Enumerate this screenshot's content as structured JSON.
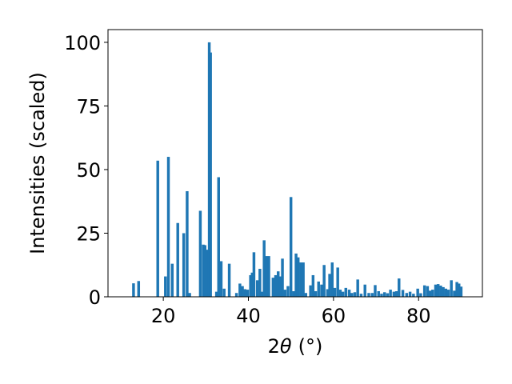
{
  "chart_data": {
    "type": "bar",
    "title": "",
    "xlabel": "2θ (°)",
    "xlabel_parts": {
      "main": "2",
      "symbol": "θ",
      "unit": "(°)"
    },
    "ylabel": "Intensities (scaled)",
    "xlim": [
      7,
      95
    ],
    "ylim": [
      0,
      105
    ],
    "xticks": [
      20,
      40,
      60,
      80
    ],
    "yticks": [
      0,
      25,
      50,
      75,
      100
    ],
    "bar_width": 0.65,
    "color": "#1f77b4",
    "grid": false,
    "legend": "none",
    "x": [
      13.0,
      14.2,
      18.7,
      20.5,
      21.2,
      22.1,
      23.4,
      24.8,
      25.6,
      26.2,
      28.7,
      29.4,
      29.8,
      30.3,
      30.8,
      31.1,
      32.5,
      33.0,
      33.6,
      34.3,
      35.5,
      37.2,
      38.0,
      38.6,
      39.2,
      39.8,
      40.5,
      40.9,
      41.3,
      42.1,
      42.7,
      43.2,
      43.7,
      44.2,
      44.8,
      45.8,
      46.4,
      47.0,
      47.5,
      48.0,
      48.6,
      49.3,
      50.0,
      50.6,
      51.2,
      51.7,
      52.3,
      52.9,
      53.5,
      54.6,
      55.2,
      55.8,
      56.5,
      57.2,
      57.8,
      58.6,
      59.1,
      59.7,
      60.3,
      61.0,
      61.6,
      62.2,
      62.9,
      63.7,
      64.3,
      65.0,
      65.7,
      66.5,
      67.4,
      68.3,
      69.1,
      69.8,
      70.6,
      71.3,
      72.0,
      72.7,
      73.4,
      74.2,
      74.8,
      75.4,
      76.3,
      77.2,
      78.0,
      78.8,
      79.8,
      80.5,
      81.4,
      82.1,
      82.7,
      83.3,
      84.0,
      84.6,
      85.2,
      85.8,
      86.4,
      87.0,
      87.7,
      88.4,
      89.0,
      89.5,
      90.0
    ],
    "values": [
      5.3,
      6.2,
      53.5,
      8.0,
      55.0,
      13.0,
      29.0,
      25.0,
      41.5,
      1.5,
      33.8,
      20.5,
      20.3,
      18.5,
      100.0,
      96.0,
      2.0,
      47.0,
      14.0,
      3.2,
      13.0,
      1.5,
      5.2,
      4.2,
      3.0,
      2.8,
      8.5,
      9.5,
      17.5,
      6.5,
      11.0,
      2.0,
      22.2,
      16.0,
      16.0,
      7.5,
      8.5,
      10.0,
      8.0,
      15.0,
      2.8,
      4.2,
      39.2,
      2.2,
      17.0,
      15.5,
      13.5,
      13.5,
      1.5,
      4.5,
      8.5,
      2.2,
      6.0,
      4.8,
      12.5,
      3.0,
      9.0,
      13.5,
      3.5,
      11.5,
      2.8,
      2.0,
      3.5,
      2.8,
      1.5,
      1.8,
      6.8,
      1.2,
      4.8,
      1.5,
      1.5,
      4.6,
      2.2,
      1.2,
      1.8,
      1.4,
      2.8,
      2.0,
      2.2,
      7.2,
      2.7,
      1.5,
      2.0,
      1.2,
      3.2,
      1.4,
      4.5,
      4.2,
      2.4,
      2.8,
      4.8,
      5.0,
      4.4,
      3.8,
      3.2,
      2.8,
      6.5,
      2.4,
      5.8,
      5.2,
      4.0
    ]
  }
}
